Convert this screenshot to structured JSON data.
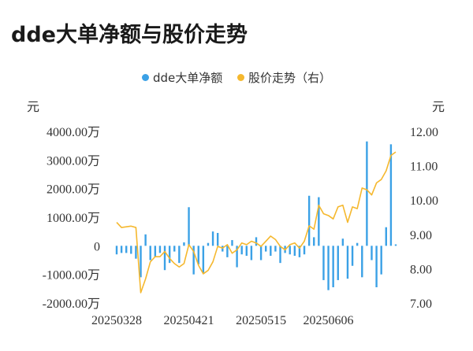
{
  "title": "dde大单净额与股价走势",
  "legend": [
    {
      "label": "dde大单净额",
      "color": "#3ba1e6"
    },
    {
      "label": "股价走势（右）",
      "color": "#f5b82e"
    }
  ],
  "units": {
    "left": "元",
    "right": "元"
  },
  "chart_data": {
    "type": "bar",
    "title": "dde大单净额与股价走势",
    "x_tick_labels": [
      "20250328",
      "20250421",
      "20250515",
      "20250606"
    ],
    "x_tick_index": [
      0,
      15,
      30,
      44
    ],
    "y_left": {
      "unit": "元",
      "ylim": [
        -2000,
        4000
      ],
      "ticks": [
        4000,
        3000,
        2000,
        1000,
        0,
        -1000,
        -2000
      ],
      "tick_labels": [
        "4000.00万",
        "3000.00万",
        "2000.00万",
        "1000.00万",
        "0",
        "-1000.00万",
        "-2000.00万"
      ]
    },
    "y_right": {
      "unit": "元",
      "ylim": [
        7,
        12
      ],
      "ticks": [
        12,
        11,
        10,
        9,
        8,
        7
      ],
      "tick_labels": [
        "12.00",
        "11.00",
        "10.00",
        "9.00",
        "8.00",
        "7.00"
      ]
    },
    "grid": false,
    "legend_position": "top-center",
    "series": [
      {
        "name": "dde大单净额",
        "type": "bar",
        "axis": "left",
        "color": "#3ba1e6",
        "values": [
          -300,
          -250,
          -250,
          -280,
          -450,
          -1100,
          400,
          -500,
          -400,
          -250,
          -850,
          -600,
          -200,
          -600,
          120,
          1350,
          -1000,
          -650,
          -950,
          100,
          500,
          450,
          -200,
          -400,
          200,
          -750,
          -300,
          -350,
          -500,
          300,
          -500,
          -200,
          -350,
          -200,
          -600,
          -250,
          -300,
          -350,
          -400,
          -300,
          1750,
          300,
          1700,
          -1200,
          -1550,
          -1450,
          -1200,
          250,
          -1150,
          -700,
          100,
          -1100,
          3650,
          -500,
          -1450,
          -1000,
          650,
          3550,
          50
        ]
      },
      {
        "name": "股价走势（右）",
        "type": "line",
        "axis": "right",
        "color": "#f5b82e",
        "values": [
          9.35,
          9.2,
          9.22,
          9.24,
          9.2,
          7.3,
          7.7,
          8.2,
          8.35,
          8.35,
          8.5,
          8.3,
          8.15,
          8.05,
          8.15,
          8.7,
          8.5,
          8.1,
          7.85,
          7.95,
          8.2,
          8.65,
          8.6,
          8.7,
          8.45,
          8.55,
          8.75,
          8.7,
          8.8,
          8.75,
          8.65,
          8.8,
          8.95,
          8.85,
          8.65,
          8.55,
          8.7,
          8.75,
          8.6,
          8.8,
          9.25,
          9.15,
          9.85,
          9.6,
          9.55,
          9.45,
          9.8,
          9.85,
          9.35,
          9.8,
          9.75,
          10.35,
          10.3,
          10.15,
          10.5,
          10.6,
          10.85,
          11.3,
          11.4
        ]
      }
    ]
  }
}
